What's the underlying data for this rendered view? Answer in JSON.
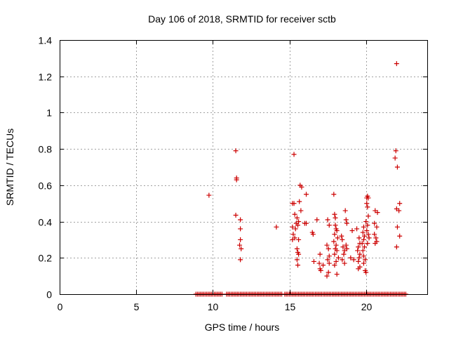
{
  "chart_data": {
    "type": "scatter",
    "title": "Day 106 of 2018, SRMTID for receiver sctb",
    "xlabel": "GPS time / hours",
    "ylabel": "SRMTID / TECUs",
    "xlim": [
      0,
      24
    ],
    "ylim": [
      0,
      1.4
    ],
    "xticks": [
      0,
      5,
      10,
      15,
      20
    ],
    "yticks": [
      0,
      0.2,
      0.4,
      0.6,
      0.8,
      1,
      1.2,
      1.4
    ],
    "ytick_labels": [
      "0",
      "0.2",
      "0.4",
      "0.6",
      "0.8",
      "1",
      "1.2",
      "1.4"
    ],
    "grid": true,
    "marker": "+",
    "color": "#cc0000",
    "baseline_zero": {
      "x_start": 8.9,
      "x_end": 22.6,
      "step": 0.1,
      "gaps": [
        [
          10.6,
          10.8
        ],
        [
          14.5,
          14.6
        ]
      ]
    },
    "series": [
      {
        "name": "SRMTID",
        "points": [
          [
            9.75,
            0.545
          ],
          [
            11.5,
            0.79
          ],
          [
            11.55,
            0.64
          ],
          [
            11.55,
            0.63
          ],
          [
            11.5,
            0.435
          ],
          [
            11.8,
            0.41
          ],
          [
            11.8,
            0.36
          ],
          [
            11.8,
            0.3
          ],
          [
            11.75,
            0.27
          ],
          [
            11.85,
            0.25
          ],
          [
            11.8,
            0.19
          ],
          [
            14.15,
            0.37
          ],
          [
            15.3,
            0.77
          ],
          [
            15.2,
            0.5
          ],
          [
            15.3,
            0.5
          ],
          [
            15.35,
            0.44
          ],
          [
            15.5,
            0.42
          ],
          [
            15.6,
            0.4
          ],
          [
            15.7,
            0.6
          ],
          [
            15.8,
            0.59
          ],
          [
            15.65,
            0.51
          ],
          [
            15.75,
            0.46
          ],
          [
            15.45,
            0.39
          ],
          [
            15.55,
            0.38
          ],
          [
            15.2,
            0.37
          ],
          [
            15.4,
            0.36
          ],
          [
            15.25,
            0.33
          ],
          [
            15.35,
            0.31
          ],
          [
            15.2,
            0.3
          ],
          [
            15.6,
            0.3
          ],
          [
            15.5,
            0.25
          ],
          [
            15.55,
            0.23
          ],
          [
            15.6,
            0.22
          ],
          [
            15.5,
            0.19
          ],
          [
            15.55,
            0.16
          ],
          [
            16.1,
            0.55
          ],
          [
            16.0,
            0.39
          ],
          [
            16.1,
            0.39
          ],
          [
            16.5,
            0.34
          ],
          [
            16.55,
            0.33
          ],
          [
            16.8,
            0.41
          ],
          [
            16.6,
            0.18
          ],
          [
            17.0,
            0.22
          ],
          [
            16.95,
            0.17
          ],
          [
            17.0,
            0.14
          ],
          [
            17.05,
            0.13
          ],
          [
            17.2,
            0.16
          ],
          [
            17.5,
            0.41
          ],
          [
            17.6,
            0.38
          ],
          [
            17.45,
            0.27
          ],
          [
            17.55,
            0.25
          ],
          [
            17.6,
            0.21
          ],
          [
            17.5,
            0.19
          ],
          [
            17.6,
            0.17
          ],
          [
            17.55,
            0.12
          ],
          [
            17.45,
            0.1
          ],
          [
            17.9,
            0.55
          ],
          [
            17.95,
            0.44
          ],
          [
            18.0,
            0.42
          ],
          [
            18.0,
            0.38
          ],
          [
            18.05,
            0.36
          ],
          [
            18.1,
            0.35
          ],
          [
            17.95,
            0.33
          ],
          [
            18.15,
            0.31
          ],
          [
            17.9,
            0.29
          ],
          [
            18.05,
            0.27
          ],
          [
            18.0,
            0.25
          ],
          [
            18.1,
            0.24
          ],
          [
            17.95,
            0.22
          ],
          [
            18.2,
            0.2
          ],
          [
            18.05,
            0.18
          ],
          [
            17.95,
            0.16
          ],
          [
            18.1,
            0.11
          ],
          [
            18.4,
            0.32
          ],
          [
            18.45,
            0.3
          ],
          [
            18.5,
            0.26
          ],
          [
            18.6,
            0.24
          ],
          [
            18.55,
            0.22
          ],
          [
            18.45,
            0.19
          ],
          [
            18.6,
            0.17
          ],
          [
            18.65,
            0.46
          ],
          [
            18.7,
            0.41
          ],
          [
            18.75,
            0.39
          ],
          [
            18.7,
            0.27
          ],
          [
            18.75,
            0.25
          ],
          [
            19.1,
            0.35
          ],
          [
            19.0,
            0.2
          ],
          [
            19.2,
            0.19
          ],
          [
            19.4,
            0.36
          ],
          [
            19.55,
            0.31
          ],
          [
            19.6,
            0.28
          ],
          [
            19.5,
            0.26
          ],
          [
            19.45,
            0.24
          ],
          [
            19.6,
            0.22
          ],
          [
            19.55,
            0.2
          ],
          [
            19.5,
            0.18
          ],
          [
            19.6,
            0.15
          ],
          [
            19.5,
            0.14
          ],
          [
            19.85,
            0.37
          ],
          [
            19.8,
            0.34
          ],
          [
            19.9,
            0.32
          ],
          [
            19.85,
            0.3
          ],
          [
            19.75,
            0.28
          ],
          [
            19.9,
            0.26
          ],
          [
            19.8,
            0.24
          ],
          [
            19.85,
            0.21
          ],
          [
            19.95,
            0.19
          ],
          [
            19.85,
            0.17
          ],
          [
            19.95,
            0.13
          ],
          [
            20.0,
            0.12
          ],
          [
            20.05,
            0.53
          ],
          [
            20.1,
            0.54
          ],
          [
            20.15,
            0.53
          ],
          [
            20.05,
            0.5
          ],
          [
            20.1,
            0.48
          ],
          [
            20.15,
            0.43
          ],
          [
            20.0,
            0.4
          ],
          [
            20.1,
            0.38
          ],
          [
            20.05,
            0.35
          ],
          [
            20.15,
            0.33
          ],
          [
            20.2,
            0.31
          ],
          [
            20.1,
            0.28
          ],
          [
            20.6,
            0.46
          ],
          [
            20.75,
            0.45
          ],
          [
            20.55,
            0.39
          ],
          [
            20.7,
            0.37
          ],
          [
            20.55,
            0.33
          ],
          [
            20.65,
            0.31
          ],
          [
            20.7,
            0.29
          ],
          [
            20.6,
            0.28
          ],
          [
            21.95,
            0.79
          ],
          [
            21.9,
            0.75
          ],
          [
            22.05,
            0.7
          ],
          [
            22.0,
            1.27
          ],
          [
            22.2,
            0.5
          ],
          [
            22.0,
            0.47
          ],
          [
            22.15,
            0.46
          ],
          [
            22.05,
            0.37
          ],
          [
            22.2,
            0.32
          ],
          [
            22.0,
            0.26
          ]
        ]
      }
    ]
  }
}
